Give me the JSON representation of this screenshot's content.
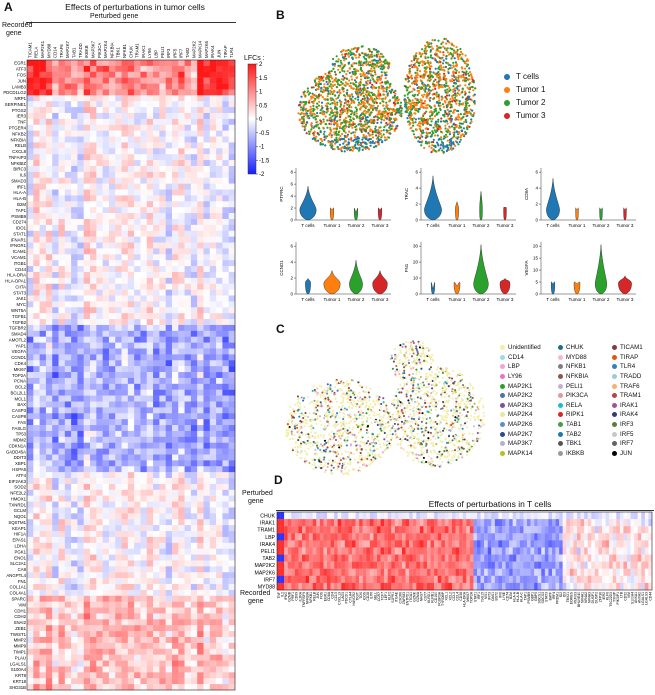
{
  "panelA": {
    "letter": "A",
    "title": "Effects of perturbations in tumor cells",
    "col_header": "Perturbed gene",
    "row_header_line1": "Recorded",
    "row_header_line2": "gene",
    "colorbar_label": "LFCs :",
    "colorbar_ticks": [
      "2",
      "1.5",
      "1",
      "0.5",
      "0",
      "-0.5",
      "-1",
      "-1.5",
      "-2"
    ],
    "columns": [
      "TICAM1",
      "RELA",
      "MAP2K1",
      "MYD88",
      "CD14",
      "TRAF6",
      "MAP2K7",
      "TAB1",
      "TRADD",
      "IKBKB",
      "MAP3K7",
      "PIK3CA",
      "MAP2K4",
      "NFKBIA",
      "TBK1",
      "NFKB1",
      "CHUK",
      "TRAM1",
      "IRAK1",
      "LY96",
      "LBP",
      "PELI1",
      "IRF3",
      "IRF5",
      "IRF7",
      "TAB2",
      "MAP2K2",
      "MAPK14",
      "MAP2K6",
      "IRAK4",
      "JUN",
      "TIRAP",
      "TLR4"
    ],
    "rows": [
      "EGR1",
      "ATF3",
      "FOS",
      "JUN",
      "LAMB3",
      "PDCD1LG2",
      "NRP1",
      "SERPINE1",
      "PTGS2",
      "IER3",
      "TNF",
      "PTGER4",
      "NFKB2",
      "NFKBIA",
      "RELB",
      "CXCL8",
      "TNFAIP3",
      "NFKBIZ",
      "BIRC3",
      "IL6",
      "SMAD3",
      "IRF1",
      "HLA-A",
      "HLA-B",
      "B2M",
      "TAP1",
      "PSMB9",
      "CD274",
      "IDO1",
      "STAT1",
      "IFNAR1",
      "IFNGR1",
      "ICAM1",
      "VCAM1",
      "ITGB1",
      "CD44",
      "HLA-DRA",
      "HLA-DPA1",
      "CIITA",
      "STAT3",
      "JAK1",
      "MYC",
      "WNT5A",
      "TGFB1",
      "TGFB2",
      "TGFBR2",
      "SMAD4",
      "AMOTL2",
      "YAP1",
      "VEGFA",
      "CCND1",
      "CDK4",
      "MKI67",
      "TOP2A",
      "PCNA",
      "BCL2",
      "BCL2L1",
      "MCL1",
      "BAX",
      "CASP3",
      "CASP8",
      "FAS",
      "FASLG",
      "TP53",
      "MDM2",
      "CDKN1A",
      "GADD45A",
      "DDIT3",
      "XBP1",
      "HSPA5",
      "ATF4",
      "EIF2AK3",
      "SOD2",
      "NFE2L2",
      "HMOX1",
      "TXNRD1",
      "GCLM",
      "NQO1",
      "SQSTM1",
      "KEAP1",
      "HIF1A",
      "EPAS1",
      "LDHA",
      "PGK1",
      "ENO1",
      "SLC2A1",
      "CA9",
      "ANGPTL4",
      "FN1",
      "COL1A1",
      "COL4A1",
      "SPARC",
      "VIM",
      "CDH1",
      "CDH2",
      "SNAI2",
      "ZEB1",
      "TWIST1",
      "MMP2",
      "MMP9",
      "TIMP1",
      "PLAU",
      "LGALS1",
      "S100A4",
      "KRT8",
      "KRT18",
      "SHD31B"
    ],
    "seed": 7
  },
  "panelB": {
    "letter": "B",
    "umap_legend": [
      {
        "label": "T cells",
        "color": "#1f77b4"
      },
      {
        "label": "Tumor 1",
        "color": "#ff7f0e"
      },
      {
        "label": "Tumor 2",
        "color": "#2ca02c"
      },
      {
        "label": "Tumor 3",
        "color": "#d62728"
      }
    ],
    "violins": [
      {
        "gene": "PTPRC",
        "yticks": [
          "0",
          "2",
          "4",
          "6",
          "8"
        ]
      },
      {
        "gene": "TRAC",
        "yticks": [
          "0",
          "2",
          "4",
          "6"
        ]
      },
      {
        "gene": "CD8A",
        "yticks": [
          "0",
          "2",
          "4",
          "6"
        ]
      },
      {
        "gene": "CCND1",
        "yticks": [
          "0",
          "2",
          "4",
          "6"
        ]
      },
      {
        "gene": "FN1",
        "yticks": [
          "0",
          "10",
          "20",
          "30"
        ]
      },
      {
        "gene": "VEGFA",
        "yticks": [
          "0",
          "5",
          "10",
          "15",
          "20"
        ]
      }
    ],
    "groups": [
      "T cells",
      "Tumor 1",
      "Tumor 2",
      "Tumor 3"
    ]
  },
  "panelC": {
    "letter": "C",
    "legend_col1": [
      {
        "label": "Unidentified",
        "color": "#f3eea6"
      },
      {
        "label": "CD14",
        "color": "#9fd7ef"
      },
      {
        "label": "LBP",
        "color": "#f0a6d4"
      },
      {
        "label": "LY96",
        "color": "#e377c2"
      },
      {
        "label": "MAP2K1",
        "color": "#2ca02c"
      },
      {
        "label": "MAP2K2",
        "color": "#4c72b0"
      },
      {
        "label": "MAP2K3",
        "color": "#7f4fa0"
      },
      {
        "label": "MAP2K4",
        "color": "#e1e8a2"
      },
      {
        "label": "MAP2K6",
        "color": "#5b8fc7"
      },
      {
        "label": "MAP2K7",
        "color": "#2b4c8c"
      },
      {
        "label": "MAP3K7",
        "color": "#b2b0d8"
      },
      {
        "label": "MAPK14",
        "color": "#bcbd22"
      }
    ],
    "legend_col2": [
      {
        "label": "CHUK",
        "color": "#1f6f8b"
      },
      {
        "label": "MYD88",
        "color": "#f7b6d2"
      },
      {
        "label": "NFKB1",
        "color": "#7f7f7f"
      },
      {
        "label": "NFKBIA",
        "color": "#8c564b"
      },
      {
        "label": "PELI1",
        "color": "#c5b0d5"
      },
      {
        "label": "PIK3CA",
        "color": "#e7969c"
      },
      {
        "label": "RELA",
        "color": "#17becf"
      },
      {
        "label": "RIPK1",
        "color": "#d62728"
      },
      {
        "label": "TAB1",
        "color": "#4a9a4a"
      },
      {
        "label": "TAB2",
        "color": "#1f77b4"
      },
      {
        "label": "TBK1",
        "color": "#555555"
      },
      {
        "label": "IKBKB",
        "color": "#999999"
      }
    ],
    "legend_col3": [
      {
        "label": "TICAM1",
        "color": "#843c39"
      },
      {
        "label": "TIRAP",
        "color": "#e6550d"
      },
      {
        "label": "TLR4",
        "color": "#3182bd"
      },
      {
        "label": "TRADD",
        "color": "#9ecae1"
      },
      {
        "label": "TRAF6",
        "color": "#fdae6b"
      },
      {
        "label": "TRAM1",
        "color": "#ad494a"
      },
      {
        "label": "IRAK1",
        "color": "#a55194"
      },
      {
        "label": "IRAK4",
        "color": "#393b79"
      },
      {
        "label": "IRF3",
        "color": "#637939"
      },
      {
        "label": "IRF5",
        "color": "#c7c7c7"
      },
      {
        "label": "IRF7",
        "color": "#636363"
      },
      {
        "label": "JUN",
        "color": "#000000"
      }
    ]
  },
  "panelD": {
    "letter": "D",
    "title": "Effects of perturbations in T cells",
    "row_header_line1": "Perturbed",
    "row_header_line2": "gene",
    "col_header_line1": "Recorded",
    "col_header_line2": "gene",
    "rows": [
      "CHUK",
      "IRAK1",
      "TRAM1",
      "LBP",
      "IRAK4",
      "PELI1",
      "TAB2",
      "MAP2K2",
      "MAP2K6",
      "IRF7",
      "MYD88"
    ],
    "columns": [
      "TNF",
      "IL2",
      "IFNG",
      "GZMB",
      "PRF1",
      "CD69",
      "IL2RA",
      "TNFRSF9",
      "NFKBIA",
      "NFKB1",
      "RELB",
      "JUN",
      "FOS",
      "EGR1",
      "CD8A",
      "CD4",
      "CCL5",
      "CXCL13",
      "LAG3",
      "PDCD1",
      "CTLA4",
      "HAVCR2",
      "TIGIT",
      "TOX",
      "ICOS",
      "CD28",
      "IL7R",
      "SELL",
      "CCR7",
      "TCF7",
      "LEF1",
      "KLF2",
      "S1PR1",
      "ITGAE",
      "CXCR6",
      "ZNF683",
      "ENTPD1",
      "ITGA1",
      "GZMK",
      "GZMA",
      "NKG7",
      "CST7",
      "KLRD1",
      "KLRB1",
      "CD160",
      "FCGR3A",
      "TYROBP",
      "XCL1",
      "XCL2",
      "CCL3",
      "CCL4",
      "CD38",
      "HLA-DRA",
      "MKI67",
      "TOP2A",
      "STAT1",
      "IRF1",
      "ISG15",
      "MX1",
      "IFIT3",
      "OAS1",
      "BST2",
      "IFI6",
      "LY6E",
      "CD74",
      "B2M",
      "HLA-A",
      "HLA-B",
      "HLA-C",
      "TAP1",
      "PSMB9",
      "GBP1",
      "GBP5",
      "SOCS1",
      "SOCS3",
      "STAT3",
      "BATF",
      "IRF4",
      "PRDM1",
      "ID2",
      "ID3",
      "TBX21",
      "EOMES",
      "RUNX3",
      "BHLHE40",
      "NR4A1",
      "NR4A2",
      "NR4A3",
      "DUSP1",
      "DUSP2",
      "ZFP36",
      "IER2",
      "KLF6",
      "TSC22D3",
      "TXNIP",
      "PIK3IP1",
      "LTB",
      "CD52",
      "VIM",
      "S100A4",
      "ANXA1",
      "ANXA2",
      "LGALS1",
      "LGALS3",
      "CD44"
    ],
    "seed": 11
  }
}
